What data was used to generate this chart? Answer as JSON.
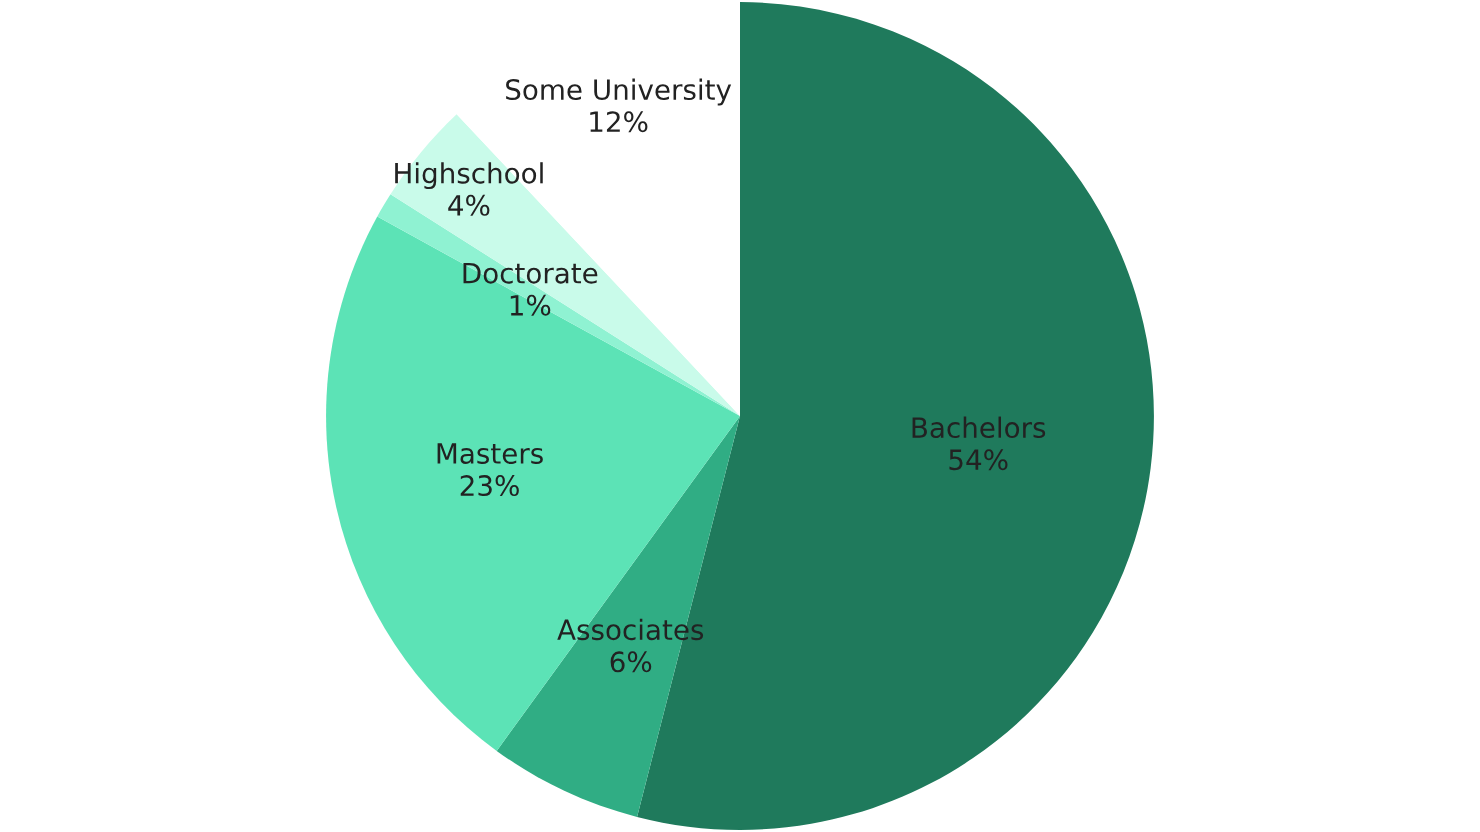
{
  "chart_data": {
    "type": "pie",
    "categories": [
      "Bachelors",
      "Associates",
      "Masters",
      "Doctorate",
      "Highschool",
      "Some University"
    ],
    "values": [
      54,
      6,
      23,
      1,
      4,
      12
    ],
    "value_labels": [
      "54%",
      "6%",
      "23%",
      "1%",
      "4%",
      "12%"
    ],
    "colors": [
      "#1f7a5c",
      "#30ad84",
      "#5ce3b6",
      "#8ff2d2",
      "#c9fbea",
      "#ffffff"
    ]
  }
}
